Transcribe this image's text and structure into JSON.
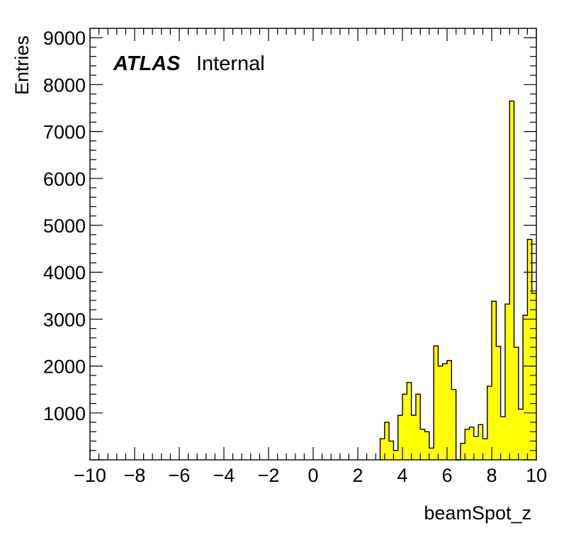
{
  "chart_data": {
    "type": "bar",
    "histogram": true,
    "fill_color": "#ffff00",
    "line_color": "#000000",
    "xlabel": "beamSpot_z",
    "ylabel": "Entries",
    "xlim": [
      -10,
      10
    ],
    "ylim": [
      0,
      9200
    ],
    "x_ticks": [
      -10,
      -8,
      -6,
      -4,
      -2,
      0,
      2,
      4,
      6,
      8,
      10
    ],
    "y_ticks": [
      1000,
      2000,
      3000,
      4000,
      5000,
      6000,
      7000,
      8000,
      9000
    ],
    "label": {
      "experiment": "ATLAS",
      "status": "Internal"
    },
    "bin_width": 0.2,
    "bins_x": [
      3.0,
      3.2,
      3.4,
      3.6,
      3.8,
      4.0,
      4.2,
      4.4,
      4.6,
      4.8,
      5.0,
      5.2,
      5.4,
      5.6,
      5.8,
      6.0,
      6.2,
      6.4,
      6.6,
      6.8,
      7.0,
      7.2,
      7.4,
      7.6,
      7.8,
      8.0,
      8.2,
      8.4,
      8.6,
      8.8,
      9.0,
      9.2,
      9.4,
      9.6,
      9.8
    ],
    "values": [
      450,
      800,
      400,
      200,
      950,
      1400,
      1650,
      950,
      1400,
      650,
      600,
      250,
      2430,
      2000,
      2050,
      2120,
      1500,
      0,
      350,
      650,
      700,
      500,
      750,
      450,
      1570,
      3380,
      2420,
      920,
      3320,
      7650,
      2400,
      1080,
      3080,
      4700,
      3550
    ]
  }
}
